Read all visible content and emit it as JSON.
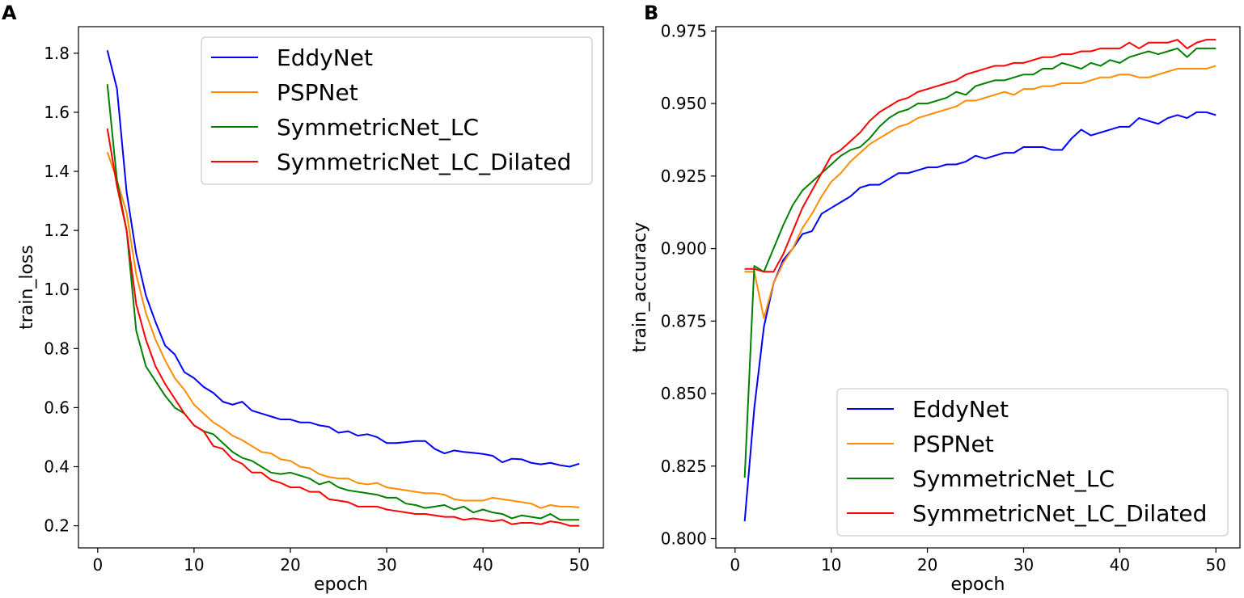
{
  "chart_data": [
    {
      "panel": "A",
      "type": "line",
      "xlabel": "epoch",
      "ylabel": "train_loss",
      "xlim": [
        -2,
        52.5
      ],
      "ylim": [
        0.125,
        1.89
      ],
      "xticks": [
        0,
        10,
        20,
        30,
        40,
        50
      ],
      "xtick_labels": [
        "0",
        "10",
        "20",
        "30",
        "40",
        "50"
      ],
      "yticks": [
        0.2,
        0.4,
        0.6,
        0.8,
        1.0,
        1.2,
        1.4,
        1.6,
        1.8
      ],
      "ytick_labels": [
        "0.2",
        "0.4",
        "0.6",
        "0.8",
        "1.0",
        "1.2",
        "1.4",
        "1.6",
        "1.8"
      ],
      "legend_position": "top-right",
      "grid": false,
      "x": [
        1,
        2,
        3,
        4,
        5,
        6,
        7,
        8,
        9,
        10,
        11,
        12,
        13,
        14,
        15,
        16,
        17,
        18,
        19,
        20,
        21,
        22,
        23,
        24,
        25,
        26,
        27,
        28,
        29,
        30,
        31,
        32,
        33,
        34,
        35,
        36,
        37,
        38,
        39,
        40,
        41,
        42,
        43,
        44,
        45,
        46,
        47,
        48,
        49,
        50
      ],
      "series": [
        {
          "name": "EddyNet",
          "color": "#0000ff",
          "values": [
            1.81,
            1.68,
            1.33,
            1.12,
            0.98,
            0.89,
            0.81,
            0.78,
            0.72,
            0.7,
            0.67,
            0.65,
            0.62,
            0.61,
            0.62,
            0.59,
            0.58,
            0.57,
            0.56,
            0.56,
            0.55,
            0.55,
            0.54,
            0.535,
            0.515,
            0.52,
            0.505,
            0.51,
            0.5,
            0.48,
            0.48,
            0.483,
            0.487,
            0.487,
            0.46,
            0.445,
            0.455,
            0.45,
            0.447,
            0.443,
            0.437,
            0.415,
            0.427,
            0.425,
            0.413,
            0.408,
            0.413,
            0.405,
            0.4,
            0.41
          ]
        },
        {
          "name": "PSPNet",
          "color": "#ff8c00",
          "values": [
            1.465,
            1.37,
            1.26,
            1.05,
            0.92,
            0.83,
            0.76,
            0.7,
            0.66,
            0.61,
            0.58,
            0.55,
            0.53,
            0.505,
            0.49,
            0.47,
            0.45,
            0.445,
            0.425,
            0.42,
            0.4,
            0.395,
            0.375,
            0.365,
            0.36,
            0.36,
            0.345,
            0.34,
            0.345,
            0.33,
            0.325,
            0.32,
            0.315,
            0.31,
            0.31,
            0.305,
            0.29,
            0.285,
            0.285,
            0.285,
            0.295,
            0.29,
            0.285,
            0.28,
            0.275,
            0.26,
            0.27,
            0.265,
            0.265,
            0.262
          ]
        },
        {
          "name": "SymmetricNet_LC",
          "color": "#008000",
          "values": [
            1.695,
            1.37,
            1.2,
            0.86,
            0.74,
            0.69,
            0.64,
            0.6,
            0.58,
            0.54,
            0.52,
            0.51,
            0.48,
            0.45,
            0.43,
            0.42,
            0.4,
            0.38,
            0.375,
            0.38,
            0.37,
            0.36,
            0.34,
            0.35,
            0.33,
            0.32,
            0.315,
            0.31,
            0.305,
            0.295,
            0.295,
            0.275,
            0.27,
            0.26,
            0.265,
            0.27,
            0.255,
            0.265,
            0.245,
            0.255,
            0.245,
            0.24,
            0.225,
            0.235,
            0.23,
            0.225,
            0.24,
            0.22,
            0.22,
            0.22
          ]
        },
        {
          "name": "SymmetricNet_LC_Dilated",
          "color": "#ff0000",
          "values": [
            1.545,
            1.35,
            1.2,
            0.95,
            0.83,
            0.74,
            0.68,
            0.63,
            0.58,
            0.54,
            0.52,
            0.47,
            0.46,
            0.425,
            0.41,
            0.38,
            0.38,
            0.355,
            0.345,
            0.33,
            0.33,
            0.315,
            0.315,
            0.29,
            0.285,
            0.28,
            0.265,
            0.265,
            0.265,
            0.255,
            0.25,
            0.245,
            0.24,
            0.24,
            0.235,
            0.23,
            0.23,
            0.22,
            0.225,
            0.22,
            0.215,
            0.22,
            0.205,
            0.21,
            0.21,
            0.205,
            0.215,
            0.21,
            0.2,
            0.2
          ]
        }
      ]
    },
    {
      "panel": "B",
      "type": "line",
      "xlabel": "epoch",
      "ylabel": "train_accuracy",
      "xlim": [
        -2,
        52.5
      ],
      "ylim": [
        0.7968,
        0.9765
      ],
      "xticks": [
        0,
        10,
        20,
        30,
        40,
        50
      ],
      "xtick_labels": [
        "0",
        "10",
        "20",
        "30",
        "40",
        "50"
      ],
      "yticks": [
        0.8,
        0.825,
        0.85,
        0.875,
        0.9,
        0.925,
        0.95,
        0.975
      ],
      "ytick_labels": [
        "0.800",
        "0.825",
        "0.850",
        "0.875",
        "0.900",
        "0.925",
        "0.950",
        "0.975"
      ],
      "legend_position": "bottom-right",
      "grid": false,
      "x": [
        1,
        2,
        3,
        4,
        5,
        6,
        7,
        8,
        9,
        10,
        11,
        12,
        13,
        14,
        15,
        16,
        17,
        18,
        19,
        20,
        21,
        22,
        23,
        24,
        25,
        26,
        27,
        28,
        29,
        30,
        31,
        32,
        33,
        34,
        35,
        36,
        37,
        38,
        39,
        40,
        41,
        42,
        43,
        44,
        45,
        46,
        47,
        48,
        49,
        50
      ],
      "series": [
        {
          "name": "EddyNet",
          "color": "#0000ff",
          "values": [
            0.806,
            0.845,
            0.873,
            0.888,
            0.896,
            0.9,
            0.905,
            0.906,
            0.912,
            0.914,
            0.916,
            0.918,
            0.921,
            0.922,
            0.922,
            0.924,
            0.926,
            0.926,
            0.927,
            0.928,
            0.928,
            0.929,
            0.929,
            0.93,
            0.932,
            0.931,
            0.932,
            0.933,
            0.933,
            0.935,
            0.935,
            0.935,
            0.934,
            0.934,
            0.938,
            0.941,
            0.939,
            0.94,
            0.941,
            0.942,
            0.942,
            0.945,
            0.944,
            0.943,
            0.945,
            0.946,
            0.945,
            0.947,
            0.947,
            0.946
          ]
        },
        {
          "name": "PSPNet",
          "color": "#ff8c00",
          "values": [
            0.892,
            0.892,
            0.876,
            0.888,
            0.895,
            0.9,
            0.907,
            0.912,
            0.918,
            0.923,
            0.926,
            0.93,
            0.933,
            0.936,
            0.938,
            0.94,
            0.942,
            0.943,
            0.945,
            0.946,
            0.947,
            0.948,
            0.949,
            0.951,
            0.951,
            0.952,
            0.953,
            0.954,
            0.953,
            0.955,
            0.955,
            0.956,
            0.956,
            0.957,
            0.957,
            0.957,
            0.958,
            0.959,
            0.959,
            0.96,
            0.96,
            0.959,
            0.959,
            0.96,
            0.961,
            0.962,
            0.962,
            0.962,
            0.962,
            0.963
          ]
        },
        {
          "name": "SymmetricNet_LC",
          "color": "#008000",
          "values": [
            0.821,
            0.894,
            0.892,
            0.9,
            0.908,
            0.915,
            0.92,
            0.923,
            0.926,
            0.929,
            0.932,
            0.934,
            0.935,
            0.938,
            0.942,
            0.945,
            0.947,
            0.948,
            0.95,
            0.95,
            0.951,
            0.952,
            0.954,
            0.953,
            0.956,
            0.957,
            0.958,
            0.958,
            0.959,
            0.96,
            0.96,
            0.962,
            0.962,
            0.964,
            0.963,
            0.962,
            0.964,
            0.963,
            0.965,
            0.964,
            0.966,
            0.967,
            0.968,
            0.967,
            0.968,
            0.969,
            0.966,
            0.969,
            0.969,
            0.969
          ]
        },
        {
          "name": "SymmetricNet_LC_Dilated",
          "color": "#ff0000",
          "values": [
            0.893,
            0.893,
            0.892,
            0.892,
            0.898,
            0.906,
            0.914,
            0.92,
            0.926,
            0.932,
            0.934,
            0.937,
            0.94,
            0.944,
            0.947,
            0.949,
            0.951,
            0.952,
            0.954,
            0.955,
            0.956,
            0.957,
            0.958,
            0.96,
            0.961,
            0.962,
            0.963,
            0.963,
            0.964,
            0.964,
            0.965,
            0.966,
            0.966,
            0.967,
            0.967,
            0.968,
            0.968,
            0.969,
            0.969,
            0.969,
            0.971,
            0.969,
            0.971,
            0.971,
            0.971,
            0.972,
            0.969,
            0.971,
            0.972,
            0.972
          ]
        }
      ]
    }
  ]
}
